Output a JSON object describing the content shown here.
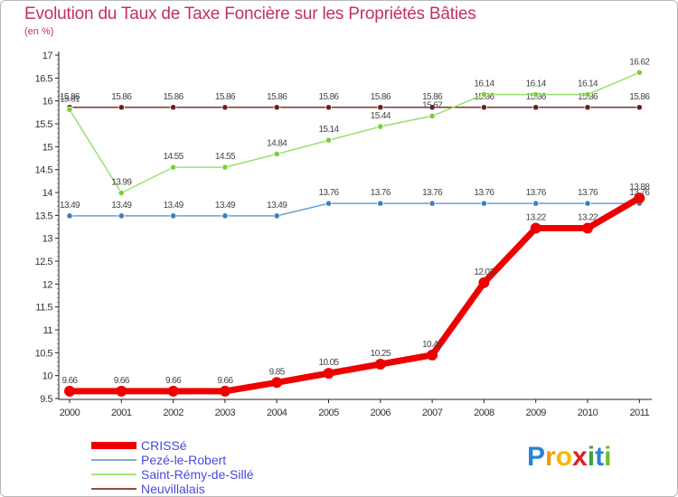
{
  "chart_data": {
    "type": "line",
    "title": "Evolution du Taux de Taxe Foncière sur les Propriétés Bâties",
    "subtitle": "(en %)",
    "x": [
      "2000",
      "2001",
      "2002",
      "2003",
      "2004",
      "2005",
      "2006",
      "2007",
      "2008",
      "2009",
      "2010",
      "2011"
    ],
    "ylim": [
      9.5,
      17
    ],
    "yticks": [
      "9.5",
      "10",
      "10.5",
      "11",
      "11.5",
      "12",
      "12.5",
      "13",
      "13.5",
      "14",
      "14.5",
      "15",
      "15.5",
      "16",
      "16.5",
      "17"
    ],
    "grid": false,
    "series": [
      {
        "name": "Neuvillalais",
        "color": "#7a3333",
        "values": [
          15.86,
          15.86,
          15.86,
          15.86,
          15.86,
          15.86,
          15.86,
          15.86,
          15.86,
          15.86,
          15.86,
          15.86
        ],
        "labels": [
          "15.86",
          "15.86",
          "15.86",
          "15.86",
          "15.86",
          "15.86",
          "15.86",
          "15.86",
          "15.86",
          "15.86",
          "15.86",
          "15.86"
        ]
      },
      {
        "name": "Saint-Rémy-de-Sillé",
        "color": "#99e06a",
        "values": [
          15.81,
          13.99,
          14.55,
          14.55,
          14.84,
          15.14,
          15.44,
          15.67,
          16.14,
          16.14,
          16.14,
          16.62
        ],
        "labels": [
          "15.81",
          "13.99",
          "14.55",
          "14.55",
          "14.84",
          "15.14",
          "15.44",
          "15.67",
          "16.14",
          "16.14",
          "16.14",
          "16.62"
        ]
      },
      {
        "name": "Pezé-le-Robert",
        "color": "#6f9fcf",
        "values": [
          13.49,
          13.49,
          13.49,
          13.49,
          13.49,
          13.76,
          13.76,
          13.76,
          13.76,
          13.76,
          13.76,
          13.76
        ],
        "labels": [
          "13.49",
          "13.49",
          "13.49",
          "13.49",
          "13.49",
          "13.76",
          "13.76",
          "13.76",
          "13.76",
          "13.76",
          "13.76",
          "13.76"
        ]
      },
      {
        "name": "CRISSé",
        "color": "#ee0000",
        "values": [
          9.66,
          9.66,
          9.66,
          9.66,
          9.85,
          10.05,
          10.25,
          10.45,
          12.03,
          13.22,
          13.22,
          13.88
        ],
        "labels": [
          "9.66",
          "9.66",
          "9.66",
          "9.66",
          "9.85",
          "10.05",
          "10.25",
          "10.45",
          "12.03",
          "13.22",
          "13.22",
          "13.88"
        ]
      }
    ],
    "legend": [
      "CRISSé",
      "Pezé-le-Robert",
      "Saint-Rémy-de-Sillé",
      "Neuvillalais"
    ],
    "legend_position": "bottom-left"
  },
  "brand": {
    "letters": [
      "P",
      "r",
      "o",
      "x",
      "i",
      "t",
      "i"
    ],
    "colors": [
      "#2a83d4",
      "#f29a0c",
      "#f5b800",
      "#e02020",
      "#3aa63a",
      "#2a83d4",
      "#6cbf2a"
    ]
  }
}
